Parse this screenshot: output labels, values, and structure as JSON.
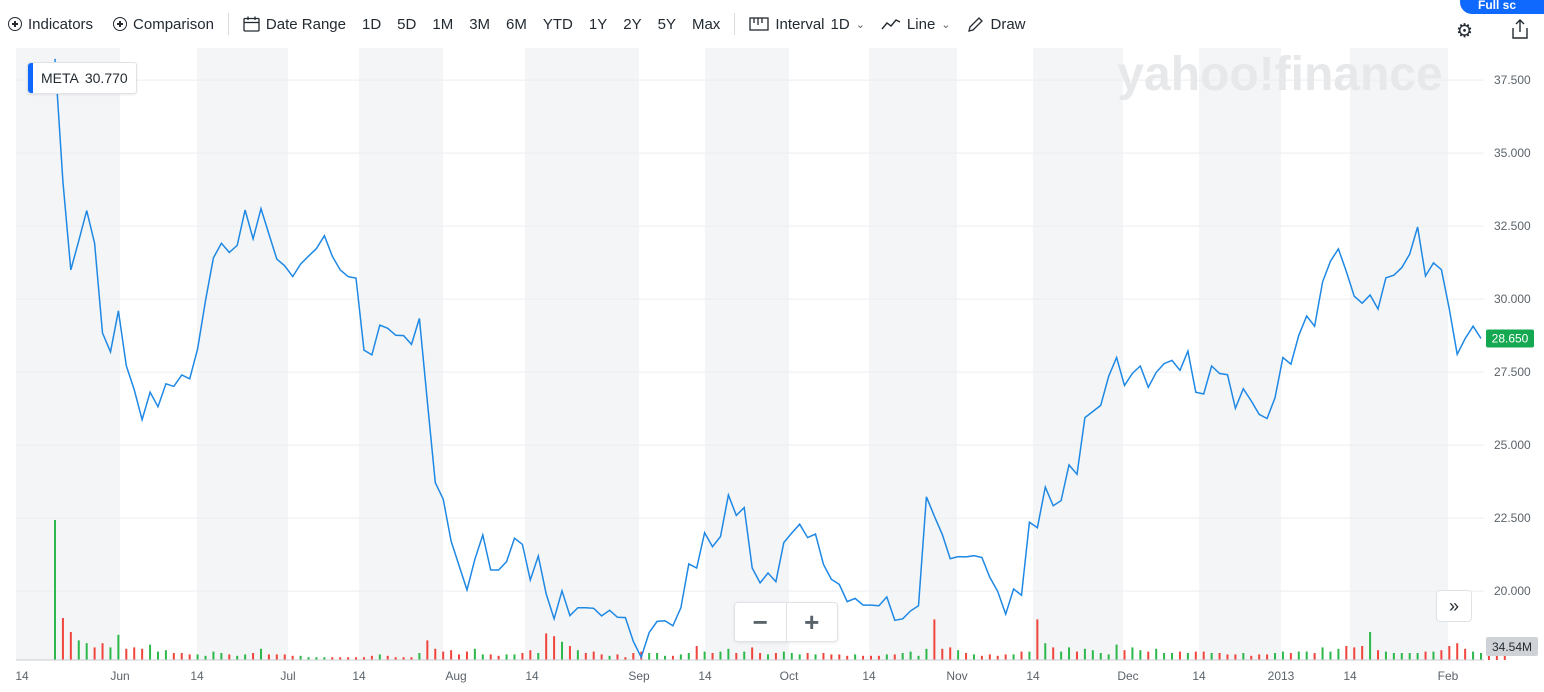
{
  "toolbar": {
    "indicators_label": "Indicators",
    "comparison_label": "Comparison",
    "date_range_label": "Date Range",
    "ranges": [
      "1D",
      "5D",
      "1M",
      "3M",
      "6M",
      "YTD",
      "1Y",
      "2Y",
      "5Y",
      "Max"
    ],
    "interval_label": "Interval",
    "interval_value": "1D",
    "chart_type_label": "Line",
    "draw_label": "Draw",
    "full_screen_label": "Full sc"
  },
  "legend": {
    "symbol": "META",
    "value": "30.770"
  },
  "watermark": "yahoo!finance",
  "zoom": {
    "minus": "−",
    "plus": "+"
  },
  "scroll_end_label": "»",
  "colors": {
    "line": "#1e88e5",
    "up": "#2db84b",
    "down": "#f0453d",
    "price_tag": "#14a850",
    "volume_tag": "#cfd3d8",
    "band": "#f4f5f6"
  },
  "chart_data": {
    "type": "line",
    "symbol": "META",
    "y_ticks": [
      20,
      22.5,
      25,
      27.5,
      30,
      32.5,
      35,
      37.5
    ],
    "y_tick_labels": [
      "20.000",
      "22.500",
      "25.000",
      "27.500",
      "30.000",
      "32.500",
      "35.000",
      "37.500"
    ],
    "ylim": [
      18.05,
      38.6
    ],
    "last_price_label": "28.650",
    "last_price": 28.65,
    "last_volume_label": "34.54M",
    "x_labels": [
      "14",
      "Jun",
      "14",
      "Jul",
      "14",
      "Aug",
      "14",
      "Sep",
      "14",
      "Oct",
      "14",
      "Nov",
      "14",
      "Dec",
      "14",
      "2013",
      "14",
      "Feb"
    ],
    "prices": [
      38.23,
      34.03,
      31.0,
      32.0,
      33.03,
      31.91,
      28.84,
      28.19,
      29.6,
      27.72,
      26.9,
      25.87,
      26.81,
      26.31,
      27.1,
      27.01,
      27.4,
      27.27,
      28.29,
      29.95,
      31.41,
      31.91,
      31.6,
      31.84,
      33.05,
      32.06,
      33.1,
      32.23,
      31.37,
      31.14,
      30.77,
      31.2,
      31.47,
      31.73,
      32.17,
      31.47,
      31.0,
      30.77,
      30.72,
      28.25,
      28.09,
      29.11,
      29.0,
      28.76,
      28.75,
      28.45,
      29.34,
      26.51,
      23.71,
      23.15,
      21.71,
      20.88,
      20.04,
      21.09,
      21.92,
      20.72,
      20.72,
      21.01,
      21.81,
      21.6,
      20.38,
      21.2,
      19.9,
      19.05,
      20.01,
      19.16,
      19.43,
      19.43,
      19.41,
      19.15,
      19.34,
      19.1,
      19.09,
      18.28,
      17.73,
      18.58,
      18.96,
      18.98,
      18.81,
      19.43,
      20.93,
      20.79,
      22.0,
      21.52,
      21.87,
      23.29,
      22.59,
      22.86,
      20.79,
      20.28,
      20.62,
      20.32,
      21.66,
      21.99,
      22.29,
      21.83,
      21.95,
      20.91,
      20.4,
      20.23,
      19.64,
      19.75,
      19.52,
      19.52,
      19.5,
      19.8,
      19.0,
      19.05,
      19.32,
      19.5,
      23.23,
      22.56,
      21.94,
      21.11,
      21.18,
      21.17,
      21.21,
      21.15,
      20.47,
      19.99,
      19.21,
      20.07,
      19.86,
      22.36,
      22.17,
      23.56,
      22.92,
      23.1,
      24.32,
      24.0,
      25.94,
      26.15,
      26.36,
      27.36,
      28.0,
      27.04,
      27.46,
      27.71,
      26.98,
      27.49,
      27.79,
      27.9,
      27.56,
      28.22,
      26.81,
      26.75,
      27.71,
      27.45,
      27.41,
      26.26,
      26.93,
      26.51,
      26.05,
      25.91,
      26.62,
      28.0,
      27.77,
      28.76,
      29.42,
      29.07,
      30.59,
      31.3,
      31.72,
      30.95,
      30.1,
      29.86,
      30.14,
      29.66,
      30.73,
      30.82,
      31.08,
      31.54,
      32.47,
      30.79,
      31.24,
      31.01,
      29.66,
      28.11,
      28.65,
      29.07,
      28.65
    ],
    "volume_relative": [
      100,
      30,
      20,
      14,
      12,
      9,
      12,
      9,
      18,
      8,
      9,
      8,
      11,
      6,
      7,
      5,
      5,
      4,
      4,
      3,
      6,
      5,
      4,
      3,
      4,
      5,
      8,
      4,
      4,
      4,
      3,
      3,
      2,
      2,
      2,
      2,
      2,
      2,
      2,
      2,
      3,
      4,
      3,
      2,
      2,
      2,
      5,
      14,
      8,
      6,
      7,
      4,
      6,
      8,
      4,
      4,
      3,
      4,
      4,
      5,
      7,
      5,
      19,
      17,
      13,
      10,
      7,
      5,
      6,
      4,
      3,
      4,
      2,
      5,
      6,
      5,
      5,
      3,
      3,
      4,
      5,
      10,
      6,
      5,
      6,
      8,
      5,
      6,
      9,
      5,
      4,
      5,
      6,
      5,
      4,
      5,
      4,
      5,
      4,
      4,
      3,
      4,
      3,
      3,
      3,
      4,
      4,
      5,
      6,
      3,
      8,
      29,
      8,
      9,
      7,
      5,
      4,
      3,
      4,
      3,
      4,
      4,
      6,
      6,
      29,
      12,
      9,
      6,
      9,
      6,
      8,
      7,
      5,
      4,
      11,
      7,
      9,
      7,
      6,
      8,
      5,
      5,
      6,
      5,
      6,
      6,
      5,
      5,
      4,
      4,
      5,
      3,
      4,
      4,
      5,
      6,
      5,
      6,
      6,
      5,
      9,
      6,
      8,
      10,
      9,
      10,
      20,
      7,
      6,
      5,
      5,
      5,
      5,
      6,
      6,
      7,
      10,
      12,
      8,
      6,
      5,
      4,
      3,
      4
    ],
    "volume_up": [
      1,
      0,
      0,
      1,
      1,
      0,
      0,
      1,
      1,
      0,
      0,
      0,
      1,
      1,
      1,
      0,
      0,
      0,
      1,
      1,
      1,
      1,
      0,
      1,
      1,
      0,
      1,
      0,
      0,
      0,
      0,
      1,
      1,
      1,
      1,
      0,
      0,
      0,
      0,
      0,
      0,
      1,
      0,
      0,
      0,
      0,
      1,
      0,
      0,
      0,
      0,
      0,
      0,
      1,
      1,
      0,
      0,
      1,
      1,
      0,
      0,
      1,
      0,
      0,
      1,
      0,
      1,
      0,
      0,
      0,
      1,
      0,
      0,
      0,
      0,
      1,
      1,
      1,
      0,
      1,
      1,
      0,
      1,
      0,
      1,
      1,
      0,
      1,
      0,
      0,
      1,
      0,
      1,
      1,
      1,
      0,
      1,
      0,
      0,
      0,
      0,
      1,
      0,
      0,
      0,
      1,
      0,
      1,
      1,
      1,
      1,
      0,
      0,
      0,
      1,
      0,
      1,
      0,
      0,
      0,
      0,
      1,
      0,
      1,
      0,
      1,
      0,
      1,
      1,
      0,
      1,
      1,
      1,
      1,
      1,
      0,
      1,
      1,
      0,
      1,
      1,
      1,
      0,
      1,
      0,
      0,
      1,
      0,
      0,
      0,
      1,
      0,
      0,
      0,
      1,
      1,
      0,
      1,
      1,
      0,
      1,
      1,
      1,
      0,
      0,
      0,
      1,
      0,
      1,
      1,
      1,
      1,
      1,
      0,
      1,
      0,
      0,
      0,
      0,
      1,
      1,
      0
    ]
  }
}
